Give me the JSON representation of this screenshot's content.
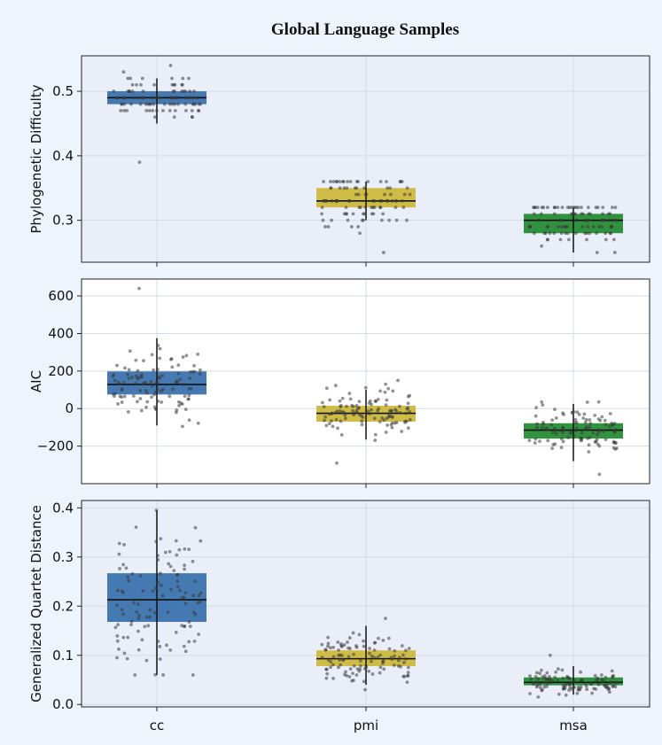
{
  "title": "Global Language Samples",
  "colors": {
    "page_bg": "#eef4fc",
    "panel_bg_1": "#eaeef8",
    "panel_bg_2": "#ffffff",
    "panel_bg_3": "#eaeef8",
    "cc": "#3c72ad",
    "pmi": "#ccb83d",
    "msa": "#268c35",
    "grid": "#d5dbe6",
    "dots": "#3a3a3a"
  },
  "chart_data": [
    {
      "type": "box",
      "ylabel": "Phylogenetic Difficulty",
      "categories": [
        "cc",
        "pmi",
        "msa"
      ],
      "ylim": [
        0.235,
        0.555
      ],
      "yticks": [
        0.3,
        0.4,
        0.5
      ],
      "ytick_labels": [
        "0.3",
        "0.4",
        "0.5"
      ],
      "show_xticklabels": false,
      "boxes": [
        {
          "name": "cc",
          "q1": 0.48,
          "median": 0.49,
          "q3": 0.5,
          "whisker_low": 0.45,
          "whisker_high": 0.52,
          "points_min": 0.39,
          "points_max": 0.54,
          "n_points": 95
        },
        {
          "name": "pmi",
          "q1": 0.32,
          "median": 0.33,
          "q3": 0.35,
          "whisker_low": 0.3,
          "whisker_high": 0.36,
          "points_min": 0.25,
          "points_max": 0.36,
          "n_points": 95
        },
        {
          "name": "msa",
          "q1": 0.28,
          "median": 0.3,
          "q3": 0.31,
          "whisker_low": 0.25,
          "whisker_high": 0.32,
          "points_min": 0.25,
          "points_max": 0.32,
          "n_points": 95
        }
      ]
    },
    {
      "type": "box",
      "ylabel": "AIC",
      "categories": [
        "cc",
        "pmi",
        "msa"
      ],
      "ylim": [
        -400,
        690
      ],
      "yticks": [
        -200,
        0,
        200,
        400,
        600
      ],
      "ytick_labels": [
        "−200",
        "0",
        "200",
        "400",
        "600"
      ],
      "show_xticklabels": false,
      "boxes": [
        {
          "name": "cc",
          "q1": 75,
          "median": 128,
          "q3": 198,
          "whisker_low": -90,
          "whisker_high": 375,
          "points_min": -95,
          "points_max": 640,
          "n_points": 110
        },
        {
          "name": "pmi",
          "q1": -70,
          "median": -25,
          "q3": 15,
          "whisker_low": -165,
          "whisker_high": 100,
          "points_min": -290,
          "points_max": 150,
          "n_points": 110
        },
        {
          "name": "msa",
          "q1": -160,
          "median": -115,
          "q3": -78,
          "whisker_low": -280,
          "whisker_high": 25,
          "points_min": -350,
          "points_max": 35,
          "n_points": 110
        }
      ]
    },
    {
      "type": "box",
      "ylabel": "Generalized Quartet Distance",
      "categories": [
        "cc",
        "pmi",
        "msa"
      ],
      "ylim": [
        -0.005,
        0.415
      ],
      "yticks": [
        0.0,
        0.1,
        0.2,
        0.3,
        0.4
      ],
      "ytick_labels": [
        "0.0",
        "0.1",
        "0.2",
        "0.3",
        "0.4"
      ],
      "show_xticklabels": true,
      "boxes": [
        {
          "name": "cc",
          "q1": 0.168,
          "median": 0.213,
          "q3": 0.267,
          "whisker_low": 0.06,
          "whisker_high": 0.395,
          "points_min": 0.06,
          "points_max": 0.395,
          "n_points": 110
        },
        {
          "name": "pmi",
          "q1": 0.078,
          "median": 0.093,
          "q3": 0.11,
          "whisker_low": 0.04,
          "whisker_high": 0.16,
          "points_min": 0.03,
          "points_max": 0.175,
          "n_points": 110
        },
        {
          "name": "msa",
          "q1": 0.039,
          "median": 0.045,
          "q3": 0.055,
          "whisker_low": 0.02,
          "whisker_high": 0.078,
          "points_min": 0.015,
          "points_max": 0.1,
          "n_points": 110
        }
      ]
    }
  ]
}
